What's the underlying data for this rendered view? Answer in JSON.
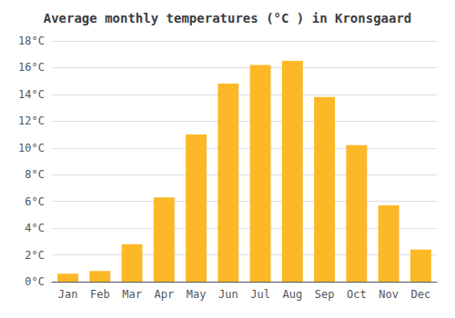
{
  "chart_data": {
    "type": "bar",
    "title": "Average monthly temperatures (°C ) in Kronsgaard",
    "categories": [
      "Jan",
      "Feb",
      "Mar",
      "Apr",
      "May",
      "Jun",
      "Jul",
      "Aug",
      "Sep",
      "Oct",
      "Nov",
      "Dec"
    ],
    "values": [
      0.6,
      0.8,
      2.8,
      6.3,
      11.0,
      14.8,
      16.2,
      16.5,
      13.8,
      10.2,
      5.7,
      2.4
    ],
    "color": "#FDB827",
    "ylim": [
      0,
      18
    ],
    "yticks": [
      {
        "value": 0,
        "label": "0°C"
      },
      {
        "value": 2,
        "label": "2°C"
      },
      {
        "value": 4,
        "label": "4°C"
      },
      {
        "value": 6,
        "label": "6°C"
      },
      {
        "value": 8,
        "label": "8°C"
      },
      {
        "value": 10,
        "label": "10°C"
      },
      {
        "value": 12,
        "label": "12°C"
      },
      {
        "value": 14,
        "label": "14°C"
      },
      {
        "value": 16,
        "label": "16°C"
      },
      {
        "value": 18,
        "label": "18°C"
      }
    ],
    "grid": true
  }
}
